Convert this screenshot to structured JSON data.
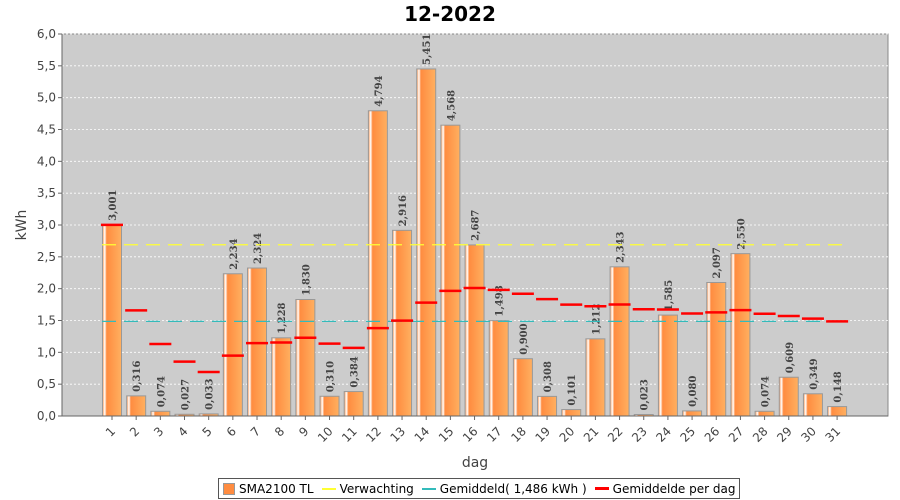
{
  "chart_data": {
    "type": "bar",
    "title": "12-2022",
    "xlabel": "dag",
    "ylabel": "kWh",
    "ylim": [
      0,
      6
    ],
    "yticks": [
      "0,0",
      "0,5",
      "1,0",
      "1,5",
      "2,0",
      "2,5",
      "3,0",
      "3,5",
      "4,0",
      "4,5",
      "5,0",
      "5,5",
      "6,0"
    ],
    "categories": [
      "1",
      "2",
      "3",
      "4",
      "5",
      "6",
      "7",
      "8",
      "9",
      "10",
      "11",
      "12",
      "13",
      "14",
      "15",
      "16",
      "17",
      "18",
      "19",
      "20",
      "21",
      "22",
      "23",
      "24",
      "25",
      "26",
      "27",
      "28",
      "29",
      "30",
      "31"
    ],
    "series": [
      {
        "name": "SMA2100 TL",
        "type": "bar",
        "color": "#ff8c40",
        "values": [
          3.001,
          0.316,
          0.074,
          0.027,
          0.033,
          2.234,
          2.324,
          1.228,
          1.83,
          0.31,
          0.384,
          4.794,
          2.916,
          5.451,
          4.568,
          2.687,
          1.498,
          0.9,
          0.308,
          0.101,
          1.212,
          2.343,
          0.023,
          1.585,
          0.08,
          2.097,
          2.55,
          0.074,
          0.609,
          0.349,
          0.148
        ],
        "labels": [
          "3,001",
          "0,316",
          "0,074",
          "0,027",
          "0,033",
          "2,234",
          "2,324",
          "1,228",
          "1,830",
          "0,310",
          "0,384",
          "4,794",
          "2,916",
          "5,451",
          "4,568",
          "2,687",
          "1,498",
          "0,900",
          "0,308",
          "0,101",
          "1,212",
          "2,343",
          "0,023",
          "1,585",
          "0,080",
          "2,097",
          "2,550",
          "0,074",
          "0,609",
          "0,349",
          "0,148"
        ]
      },
      {
        "name": "Verwachting",
        "type": "hline",
        "color": "#ffff33",
        "value": 2.69
      },
      {
        "name": "Gemiddeld( 1,486 kWh )",
        "type": "hline",
        "color": "#33bbbb",
        "value": 1.486
      },
      {
        "name": "Gemiddelde per dag",
        "type": "running-average",
        "color": "#ff0000"
      }
    ],
    "grid": true,
    "legend": "bottom"
  }
}
